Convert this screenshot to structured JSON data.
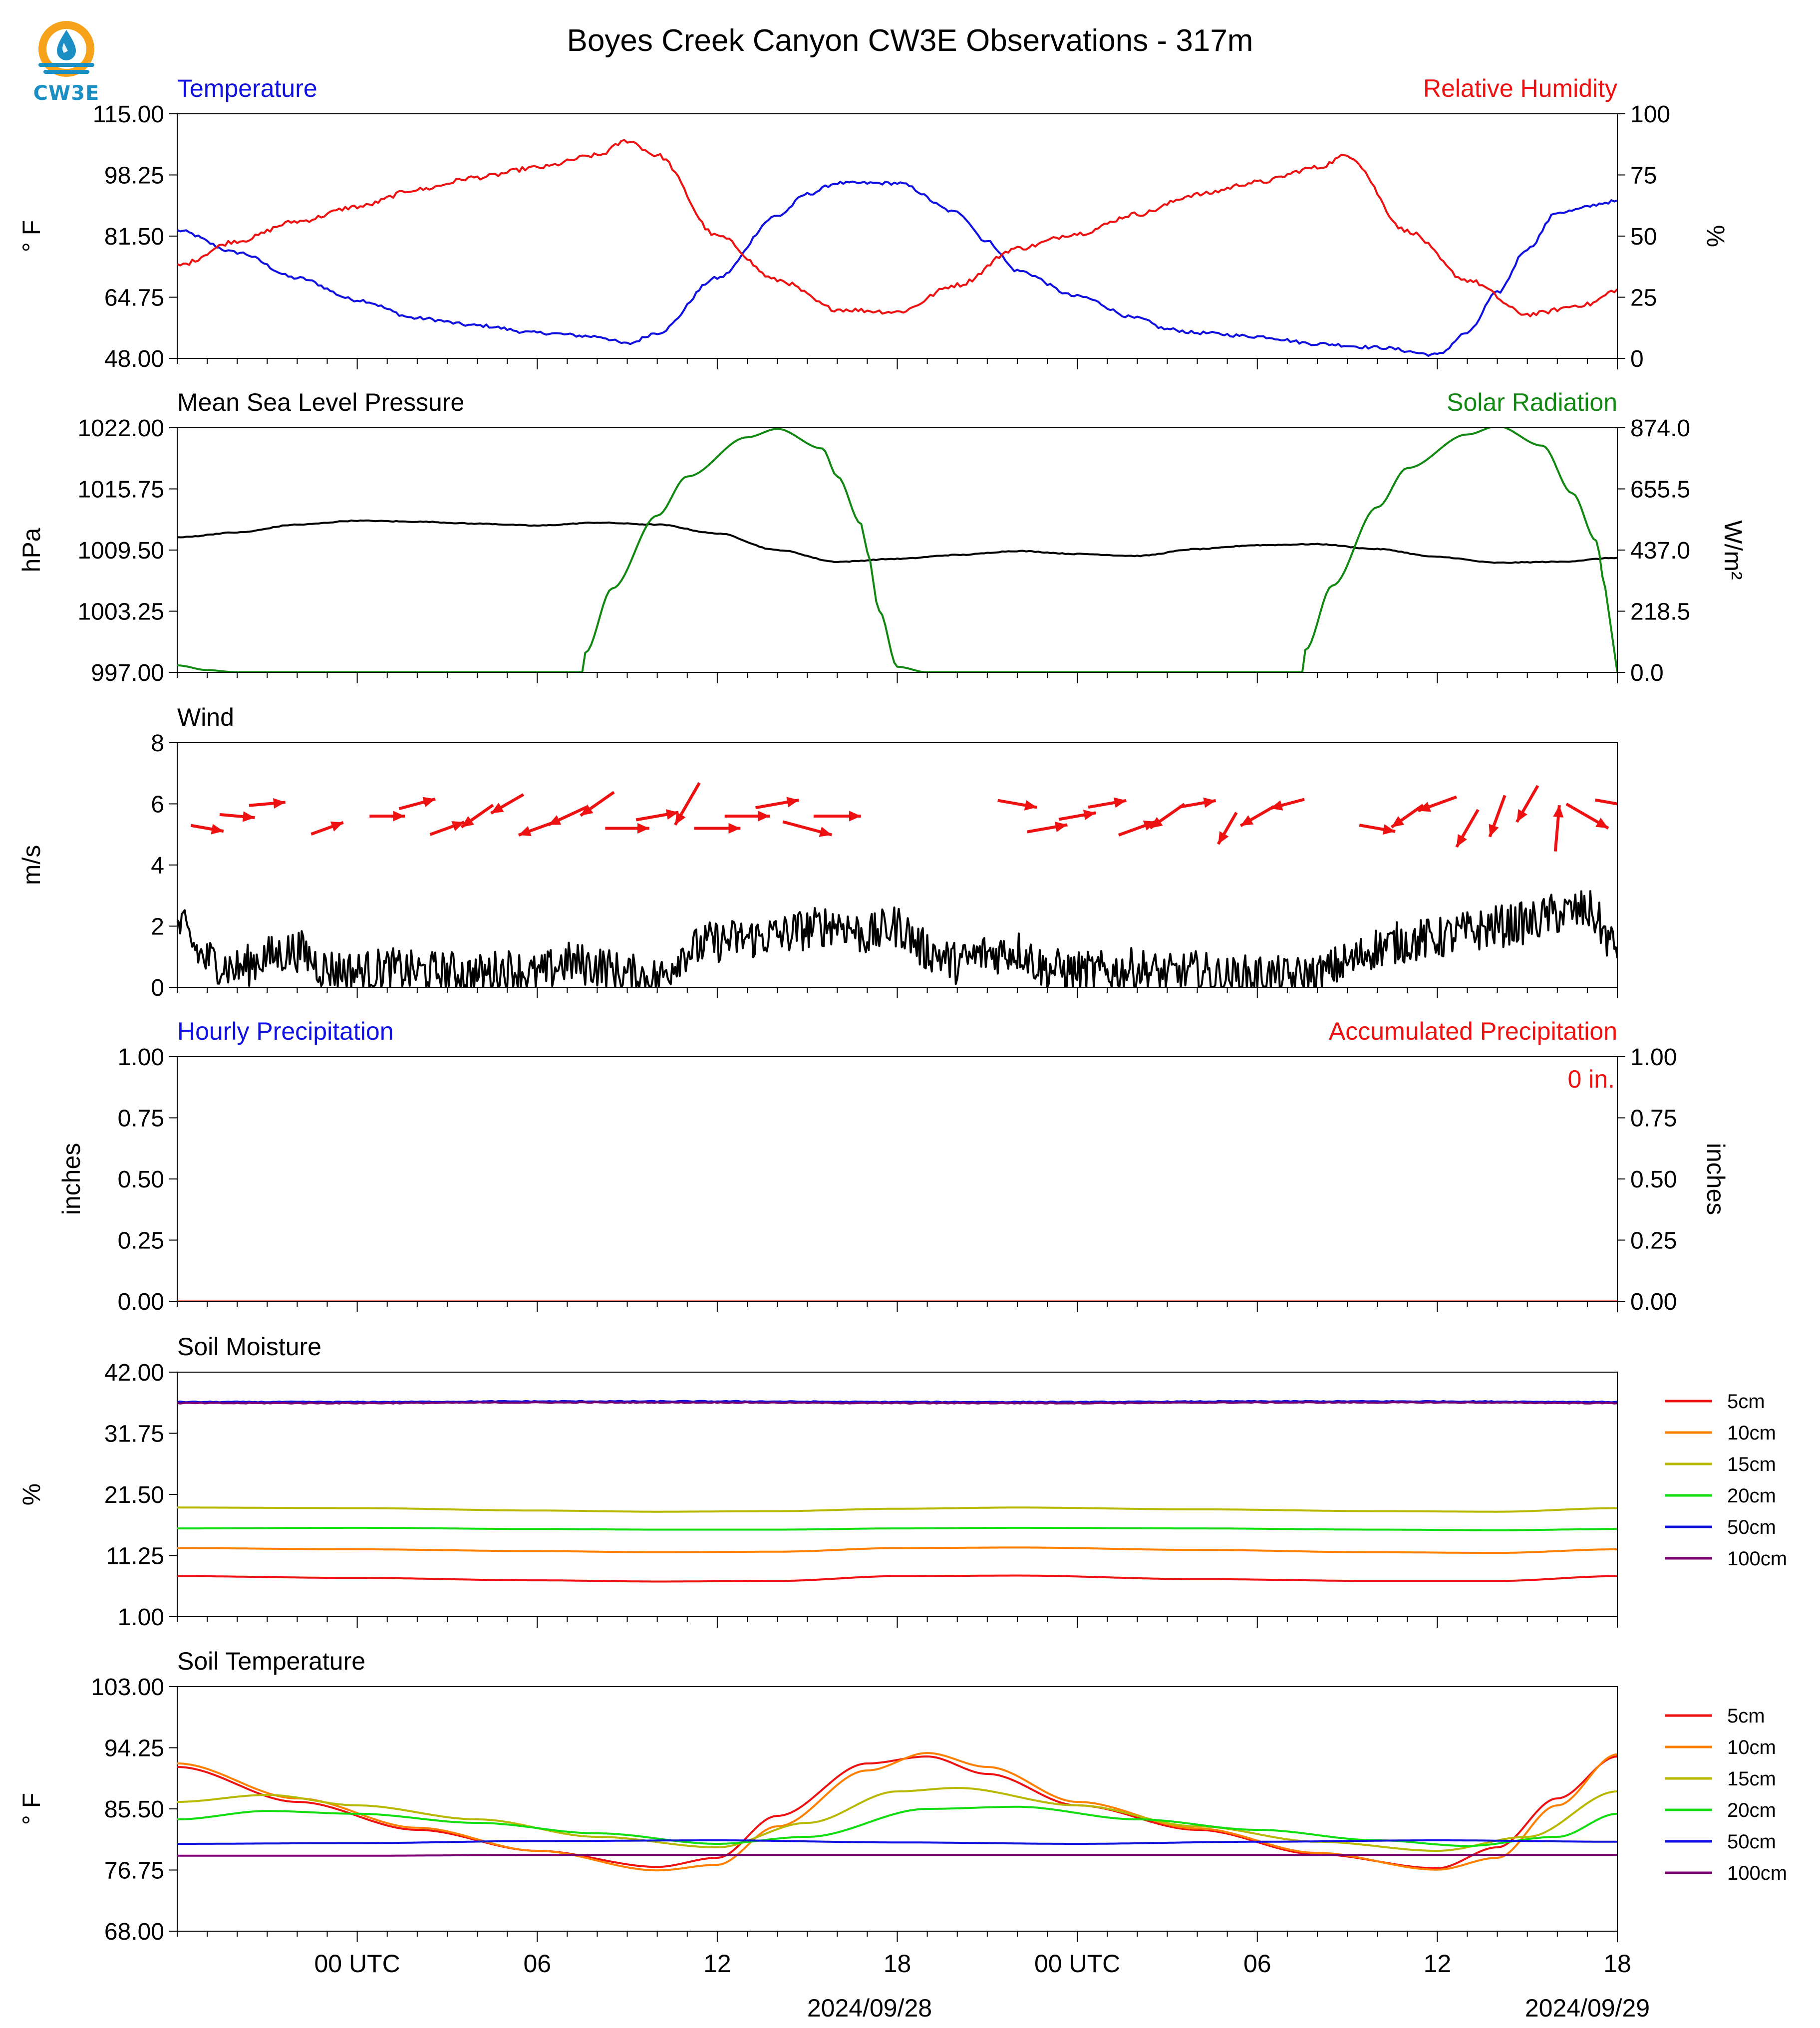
{
  "title": "Boyes Creek Canyon CW3E Observations - 317m",
  "logo": {
    "text": "CW3E",
    "colors": {
      "sun": "#f7a21b",
      "drop": "#1b8fc4",
      "wave": "#1b8fc4"
    }
  },
  "x_axis": {
    "ticks": [
      "06",
      "12",
      "18",
      "00 UTC",
      "06",
      "12",
      "18",
      "00 UTC"
    ],
    "dates": [
      "2024/09/28",
      "2024/09/29"
    ],
    "range_hours": [
      -6,
      42
    ]
  },
  "colors": {
    "temperature": "#1010e0",
    "humidity": "#ee1111",
    "pressure": "#000000",
    "solar": "#118811",
    "wind_arrow": "#ee1111",
    "wind_speed": "#000000",
    "hourly_precip": "#1010e0",
    "accum_precip": "#ee1111"
  },
  "layer_colors": [
    "#ee1111",
    "#ff8000",
    "#b8b800",
    "#11dd11",
    "#1111dd",
    "#7a0070"
  ],
  "chart_data": [
    {
      "type": "line",
      "left_title": "Temperature",
      "right_title": "Relative Humidity",
      "ylabel": "° F",
      "ylabel_right": "%",
      "ylim": [
        48,
        115
      ],
      "ylim_right": [
        0,
        100
      ],
      "yticks": [
        "48.00",
        "64.75",
        "81.50",
        "98.25",
        "115.00"
      ],
      "yticks_right": [
        "0",
        "25",
        "50",
        "75",
        "100"
      ],
      "series": [
        {
          "key": "temperature",
          "axis": "left",
          "x": [
            -6,
            -4,
            -2,
            0,
            2,
            4,
            6,
            8,
            9,
            10,
            12,
            14,
            15,
            16,
            18,
            20,
            21,
            22,
            24,
            26,
            27,
            28,
            30,
            32,
            34,
            36,
            37,
            38,
            39,
            40,
            42
          ],
          "y": [
            83,
            77,
            70,
            64,
            59,
            57,
            55,
            54,
            52,
            55,
            70,
            87,
            93,
            96,
            96,
            88,
            80,
            72,
            65,
            59,
            56,
            55,
            54,
            52,
            51,
            49,
            55,
            66,
            78,
            88,
            91
          ]
        },
        {
          "key": "humidity",
          "axis": "right",
          "x": [
            -6,
            -4,
            -2,
            0,
            2,
            4,
            6,
            8,
            9,
            10,
            12,
            14,
            16,
            18,
            20,
            22,
            24,
            26,
            28,
            30,
            32,
            33,
            35,
            37,
            39,
            41,
            42
          ],
          "y": [
            38,
            48,
            56,
            62,
            69,
            74,
            78,
            83,
            89,
            83,
            50,
            32,
            20,
            19,
            30,
            45,
            51,
            59,
            67,
            72,
            78,
            83,
            52,
            32,
            18,
            22,
            28
          ]
        }
      ]
    },
    {
      "type": "line",
      "left_title": "Mean Sea Level Pressure",
      "right_title": "Solar Radiation",
      "ylabel": "hPa",
      "ylabel_right": "W/m²",
      "ylim": [
        997,
        1022
      ],
      "ylim_right": [
        0,
        874
      ],
      "yticks": [
        "997.00",
        "1003.25",
        "1009.50",
        "1015.75",
        "1022.00"
      ],
      "yticks_right": [
        "0.0",
        "218.5",
        "437.0",
        "655.5",
        "874.0"
      ],
      "series": [
        {
          "key": "pressure",
          "axis": "left",
          "x": [
            -6,
            -4,
            -2,
            0,
            2,
            4,
            6,
            8,
            10,
            12,
            14,
            16,
            18,
            20,
            22,
            24,
            26,
            28,
            30,
            32,
            34,
            36,
            38,
            40,
            42
          ],
          "y": [
            1010.8,
            1011.3,
            1012.1,
            1012.5,
            1012.4,
            1012.2,
            1012.0,
            1012.3,
            1012.1,
            1011.2,
            1009.5,
            1008.3,
            1008.6,
            1009.0,
            1009.4,
            1009.1,
            1008.9,
            1009.6,
            1010.0,
            1010.1,
            1009.6,
            1008.8,
            1008.2,
            1008.3,
            1008.7
          ]
        },
        {
          "key": "solar",
          "axis": "right",
          "x": [
            -6,
            -5,
            -4,
            7.5,
            7.6,
            8.5,
            10,
            11,
            13,
            14,
            15.5,
            16,
            16.8,
            17,
            17.4,
            18,
            19,
            31.5,
            31.6,
            32.5,
            34,
            35,
            37,
            38,
            39.5,
            40.5,
            41.3,
            41.6,
            41.8,
            42
          ],
          "y": [
            25,
            8,
            0,
            0,
            70,
            300,
            560,
            700,
            840,
            870,
            800,
            700,
            530,
            430,
            220,
            20,
            0,
            0,
            80,
            310,
            590,
            730,
            850,
            880,
            810,
            640,
            470,
            300,
            150,
            0
          ]
        }
      ]
    },
    {
      "type": "line",
      "left_title": "Wind",
      "ylabel": "m/s",
      "ylim": [
        0,
        8
      ],
      "yticks": [
        "0",
        "2",
        "4",
        "6",
        "8"
      ],
      "series": [
        {
          "key": "wind_speed",
          "x": [
            -6,
            -5,
            -4,
            -3,
            -2,
            -1,
            0,
            1,
            2,
            3,
            4,
            5,
            6,
            7,
            8,
            9,
            10,
            11,
            12,
            13,
            14,
            15,
            16,
            17,
            18,
            19,
            20,
            21,
            22,
            23,
            24,
            25,
            26,
            27,
            28,
            29,
            30,
            31,
            32,
            33,
            34,
            35,
            36,
            37,
            38,
            39,
            40,
            41,
            42
          ],
          "y": [
            2.0,
            0.9,
            0.6,
            1.0,
            1.2,
            0.6,
            0.5,
            0.6,
            0.5,
            0.5,
            0.4,
            0.6,
            0.4,
            0.8,
            0.7,
            0.4,
            0.3,
            1.2,
            1.5,
            1.6,
            1.7,
            1.9,
            2.1,
            1.7,
            2.0,
            1.2,
            0.8,
            1.1,
            1.2,
            0.6,
            0.5,
            0.5,
            0.6,
            0.4,
            0.5,
            0.3,
            0.4,
            0.3,
            0.4,
            0.8,
            1.3,
            1.5,
            1.6,
            1.8,
            2.0,
            2.1,
            2.4,
            2.5,
            1.3
          ]
        },
        {
          "key": "wind_barbs",
          "x": [
            -5,
            -4,
            -3,
            -1,
            1,
            2,
            3,
            4,
            5,
            6,
            7,
            8,
            9,
            10,
            11,
            12,
            13,
            14,
            15,
            16,
            22,
            23,
            24,
            25,
            26,
            27,
            28,
            29,
            30,
            31,
            34,
            35,
            36,
            37,
            38,
            39,
            40,
            41,
            42
          ],
          "speed": [
            1.2,
            1.4,
            1.5,
            1.3,
            1.4,
            1.6,
            1.5,
            1.7,
            1.6,
            1.8,
            2.0,
            1.9,
            2.2,
            2.1,
            2.6,
            2.4,
            2.3,
            2.2,
            2.8,
            2.5,
            1.8,
            1.9,
            1.6,
            1.7,
            1.8,
            2.0,
            1.6,
            1.5,
            1.7,
            1.4,
            1.5,
            1.7,
            1.9,
            2.1,
            2.2,
            2.0,
            2.4,
            2.6,
            2.3
          ],
          "angle_deg": [
            10,
            5,
            -5,
            -20,
            0,
            -15,
            -20,
            145,
            150,
            160,
            155,
            145,
            0,
            -10,
            120,
            0,
            0,
            -10,
            15,
            0,
            10,
            -10,
            -10,
            -10,
            -20,
            145,
            -10,
            120,
            150,
            165,
            10,
            145,
            160,
            120,
            110,
            120,
            -85,
            30,
            10
          ]
        }
      ]
    },
    {
      "type": "line",
      "left_title": "Hourly Precipitation",
      "right_title": "Accumulated Precipitation",
      "annotation": "0 in.",
      "ylabel": "inches",
      "ylabel_right": "inches",
      "ylim": [
        0,
        1
      ],
      "ylim_right": [
        0,
        1
      ],
      "yticks": [
        "0.00",
        "0.25",
        "0.50",
        "0.75",
        "1.00"
      ],
      "yticks_right": [
        "0.00",
        "0.25",
        "0.50",
        "0.75",
        "1.00"
      ],
      "series": [
        {
          "key": "hourly_precip",
          "x": [
            -6,
            42
          ],
          "y": [
            0,
            0
          ]
        },
        {
          "key": "accum_precip",
          "x": [
            -6,
            42
          ],
          "y": [
            0,
            0
          ]
        }
      ]
    },
    {
      "type": "line",
      "left_title": "Soil Moisture",
      "ylabel": "%",
      "ylim": [
        1,
        42
      ],
      "yticks": [
        "1.00",
        "11.25",
        "21.50",
        "31.75",
        "42.00"
      ],
      "legend": [
        "5cm",
        "10cm",
        "15cm",
        "20cm",
        "50cm",
        "100cm"
      ],
      "series": [
        {
          "name": "5cm",
          "x": [
            -6,
            0,
            6,
            10,
            14,
            18,
            22,
            28,
            34,
            38,
            42
          ],
          "y": [
            7.8,
            7.5,
            7.1,
            6.9,
            7.0,
            7.8,
            7.9,
            7.3,
            7.0,
            7.0,
            7.8
          ]
        },
        {
          "name": "10cm",
          "x": [
            -6,
            0,
            6,
            10,
            14,
            18,
            22,
            28,
            34,
            38,
            42
          ],
          "y": [
            12.5,
            12.3,
            12.0,
            11.8,
            11.9,
            12.5,
            12.6,
            12.2,
            11.8,
            11.7,
            12.3
          ]
        },
        {
          "name": "15cm",
          "x": [
            -6,
            0,
            6,
            10,
            14,
            18,
            22,
            28,
            34,
            38,
            42
          ],
          "y": [
            19.3,
            19.2,
            18.8,
            18.6,
            18.7,
            19.1,
            19.3,
            19.0,
            18.7,
            18.6,
            19.2
          ]
        },
        {
          "name": "20cm",
          "x": [
            -6,
            0,
            6,
            10,
            14,
            18,
            22,
            28,
            34,
            38,
            42
          ],
          "y": [
            15.8,
            15.9,
            15.7,
            15.6,
            15.6,
            15.8,
            15.9,
            15.8,
            15.6,
            15.5,
            15.7
          ]
        },
        {
          "name": "50cm",
          "x": [
            -6,
            0,
            6,
            12,
            18,
            24,
            30,
            36,
            42
          ],
          "y": [
            37.0,
            37.0,
            37.1,
            37.1,
            37.0,
            37.0,
            37.1,
            37.1,
            37.0
          ]
        },
        {
          "name": "100cm",
          "x": [
            -6,
            0,
            6,
            12,
            18,
            24,
            30,
            36,
            42
          ],
          "y": [
            36.8,
            36.8,
            36.9,
            36.9,
            36.8,
            36.8,
            36.9,
            36.9,
            36.8
          ]
        }
      ]
    },
    {
      "type": "line",
      "left_title": "Soil Temperature",
      "ylabel": "° F",
      "ylim": [
        68,
        103
      ],
      "yticks": [
        "68.00",
        "76.75",
        "85.50",
        "94.25",
        "103.00"
      ],
      "legend": [
        "5cm",
        "10cm",
        "15cm",
        "20cm",
        "50cm",
        "100cm"
      ],
      "series": [
        {
          "name": "5cm",
          "x": [
            -6,
            -2,
            2,
            6,
            10,
            12,
            14,
            17,
            19,
            21,
            24,
            28,
            32,
            36,
            38,
            40,
            42
          ],
          "y": [
            91.5,
            86.5,
            82.5,
            79.5,
            77.2,
            78.5,
            84.5,
            92.0,
            93.0,
            90.5,
            86.0,
            82.5,
            79.0,
            77.0,
            80.0,
            87.0,
            93.0
          ]
        },
        {
          "name": "10cm",
          "x": [
            -6,
            -2,
            2,
            6,
            10,
            12,
            14,
            17,
            19,
            21,
            24,
            28,
            32,
            36,
            38,
            40,
            42
          ],
          "y": [
            92.0,
            87.0,
            82.8,
            79.5,
            76.7,
            77.5,
            83.0,
            91.0,
            93.5,
            91.5,
            86.5,
            82.7,
            79.2,
            76.8,
            78.5,
            86.0,
            93.3
          ]
        },
        {
          "name": "15cm",
          "x": [
            -6,
            -3,
            0,
            4,
            8,
            12,
            15,
            18,
            20,
            24,
            28,
            32,
            36,
            39,
            42
          ],
          "y": [
            86.5,
            87.5,
            86.0,
            84.0,
            81.5,
            80.0,
            83.5,
            88.0,
            88.5,
            86.0,
            83.0,
            80.8,
            79.5,
            81.5,
            88.0
          ]
        },
        {
          "name": "20cm",
          "x": [
            -6,
            -3,
            0,
            4,
            8,
            12,
            15,
            19,
            22,
            26,
            30,
            34,
            37,
            40,
            42
          ],
          "y": [
            84.0,
            85.2,
            84.8,
            83.5,
            82.0,
            80.5,
            81.5,
            85.5,
            85.8,
            84.0,
            82.5,
            81.0,
            80.2,
            81.5,
            84.8
          ]
        },
        {
          "name": "50cm",
          "x": [
            -6,
            0,
            6,
            12,
            18,
            24,
            30,
            36,
            42
          ],
          "y": [
            80.5,
            80.6,
            80.9,
            81.0,
            80.7,
            80.5,
            80.8,
            81.0,
            80.8
          ]
        },
        {
          "name": "100cm",
          "x": [
            -6,
            0,
            6,
            12,
            18,
            24,
            30,
            36,
            42
          ],
          "y": [
            78.8,
            78.8,
            78.9,
            78.9,
            78.9,
            78.9,
            78.9,
            78.9,
            78.9
          ]
        }
      ]
    }
  ]
}
